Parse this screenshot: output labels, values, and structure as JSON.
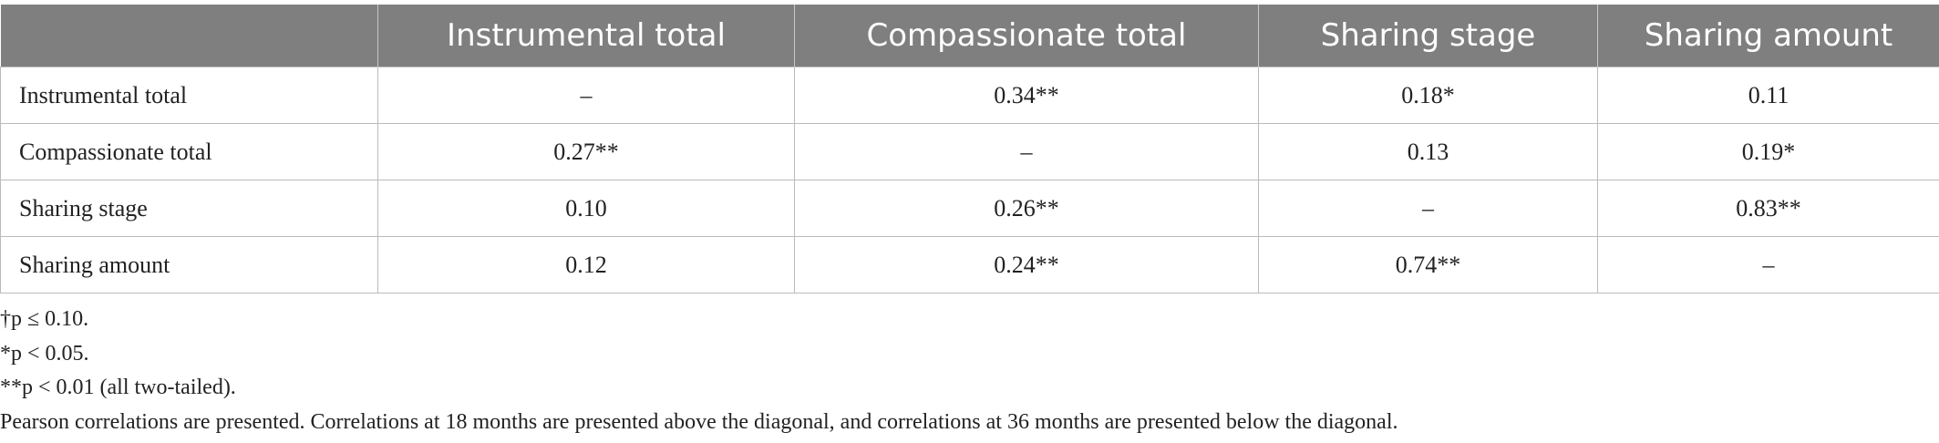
{
  "table": {
    "columns": [
      "Instrumental total",
      "Compassionate total",
      "Sharing stage",
      "Sharing amount"
    ],
    "rows": [
      {
        "label": "Instrumental total",
        "cells": [
          "–",
          "0.34**",
          "0.18*",
          "0.11"
        ]
      },
      {
        "label": "Compassionate total",
        "cells": [
          "0.27**",
          "–",
          "0.13",
          "0.19*"
        ]
      },
      {
        "label": "Sharing stage",
        "cells": [
          "0.10",
          "0.26**",
          "–",
          "0.83**"
        ]
      },
      {
        "label": "Sharing amount",
        "cells": [
          "0.12",
          "0.24**",
          "0.74**",
          "–"
        ]
      }
    ]
  },
  "notes": [
    "†p ≤ 0.10.",
    "*p < 0.05.",
    "**p < 0.01 (all two-tailed).",
    "Pearson correlations are presented. Correlations at 18 months are presented above the diagonal, and correlations at 36 months are presented below the diagonal."
  ]
}
